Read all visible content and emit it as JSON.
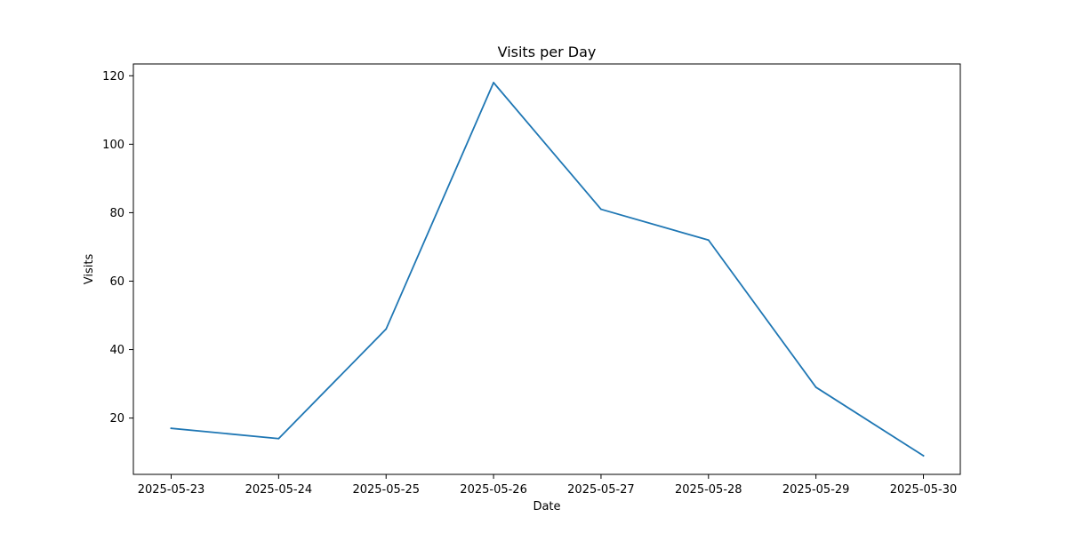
{
  "chart_data": {
    "type": "line",
    "title": "Visits per Day",
    "xlabel": "Date",
    "ylabel": "Visits",
    "x": [
      "2025-05-23",
      "2025-05-24",
      "2025-05-25",
      "2025-05-26",
      "2025-05-27",
      "2025-05-28",
      "2025-05-29",
      "2025-05-30"
    ],
    "series": [
      {
        "values": [
          17,
          14,
          46,
          118,
          81,
          72,
          29,
          9
        ],
        "color": "#1f77b4"
      }
    ],
    "yticks": [
      20,
      40,
      60,
      80,
      100,
      120
    ],
    "ylim": [
      3.55,
      123.45
    ],
    "grid": false,
    "legend": "none"
  }
}
